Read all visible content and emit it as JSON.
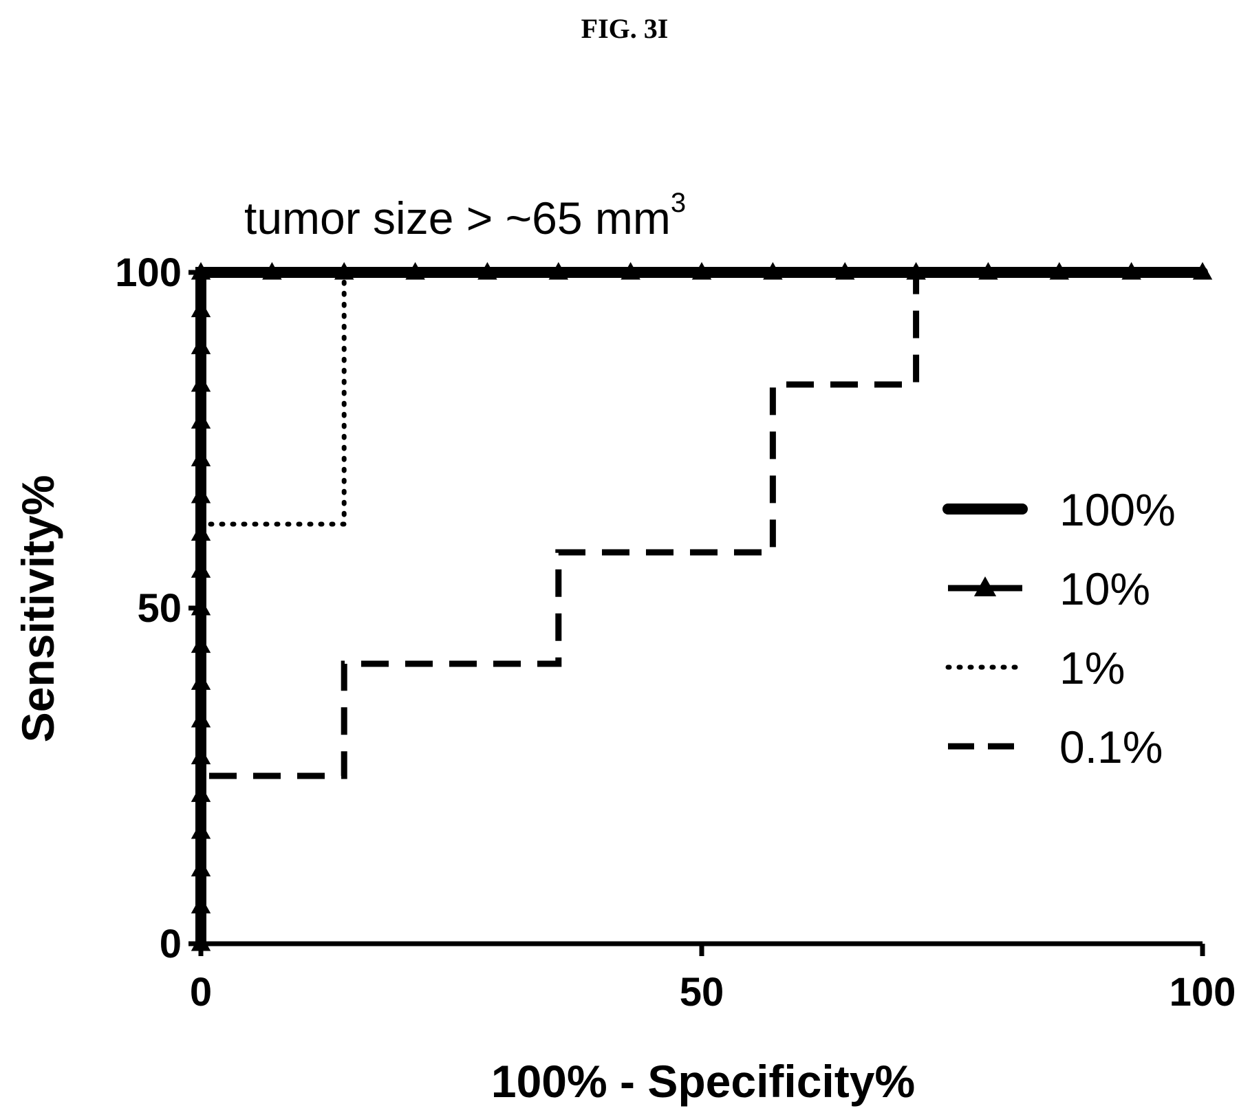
{
  "figure_label": "FIG. 3I",
  "chart_data": {
    "type": "line",
    "subtitle": "tumor size > ~65 mm",
    "subtitle_superscript": "3",
    "xlabel": "100% - Specificity%",
    "ylabel": "Sensitivity%",
    "xlim": [
      0,
      100
    ],
    "ylim": [
      0,
      100
    ],
    "xticks": [
      0,
      50,
      100
    ],
    "yticks": [
      0,
      50,
      100
    ],
    "xtick_labels": [
      "0",
      "50",
      "100"
    ],
    "ytick_labels": [
      "0",
      "50",
      "100"
    ],
    "grid": false,
    "legend_position": "right",
    "series": [
      {
        "name": "100%",
        "style": "thick-solid",
        "color": "#000000",
        "x": [
          0,
          0,
          100
        ],
        "y": [
          0,
          100,
          100
        ]
      },
      {
        "name": "10%",
        "style": "solid-triangle",
        "color": "#000000",
        "x": [
          0,
          0,
          0,
          0,
          0,
          0,
          0,
          0,
          0,
          0,
          0,
          0,
          0,
          0,
          0,
          0,
          0,
          0,
          0,
          7.1,
          14.3,
          21.4,
          28.6,
          35.7,
          42.9,
          50,
          57.1,
          64.3,
          71.4,
          78.6,
          85.7,
          92.9,
          100
        ],
        "y": [
          0,
          5.6,
          11.1,
          16.7,
          22.2,
          27.8,
          33.3,
          38.9,
          44.4,
          50,
          55.6,
          61.1,
          66.7,
          72.2,
          77.8,
          83.3,
          88.9,
          94.4,
          100,
          100,
          100,
          100,
          100,
          100,
          100,
          100,
          100,
          100,
          100,
          100,
          100,
          100,
          100
        ]
      },
      {
        "name": "1%",
        "style": "dotted",
        "color": "#000000",
        "x": [
          0,
          0,
          14.3,
          14.3,
          100
        ],
        "y": [
          0,
          62.5,
          62.5,
          100,
          100
        ]
      },
      {
        "name": "0.1%",
        "style": "dashed",
        "color": "#000000",
        "x": [
          0,
          0,
          14.3,
          14.3,
          35.7,
          35.7,
          57.1,
          57.1,
          71.4,
          71.4,
          100
        ],
        "y": [
          0,
          25,
          25,
          41.7,
          41.7,
          58.3,
          58.3,
          83.3,
          83.3,
          100,
          100
        ]
      }
    ]
  }
}
